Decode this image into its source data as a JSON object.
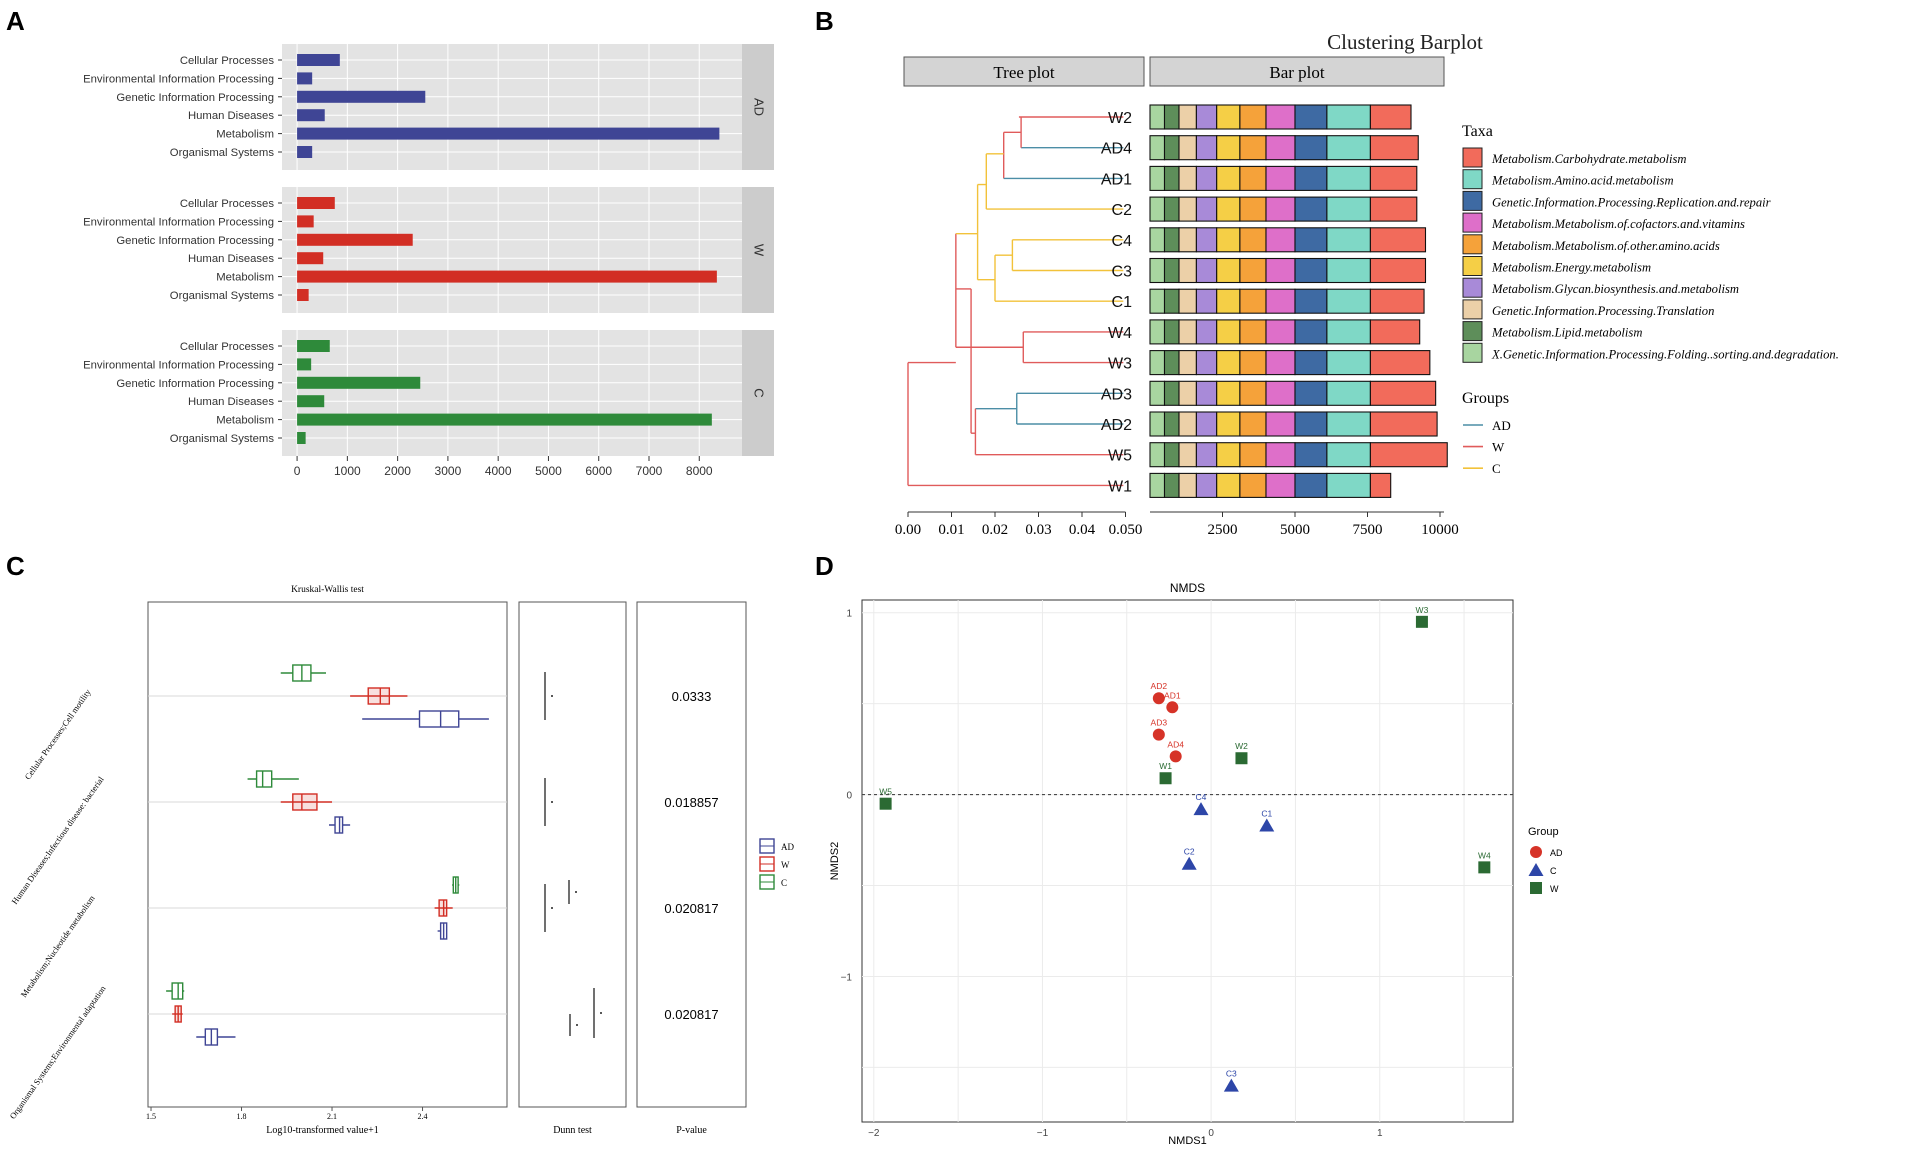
{
  "colors": {
    "AD": "#3f4595",
    "W": "#d22e24",
    "C": "#2e8a3a",
    "panel_bg": "#e3e3e3",
    "strip_bg": "#cccccc",
    "grid": "#ffffff",
    "tree_AD": "#4c8ea6",
    "tree_W": "#e05b5b",
    "tree_C": "#f2c23a",
    "nmds_AD": "#d63328",
    "nmds_C": "#2d46a8",
    "nmds_W": "#2b6a33"
  },
  "chart_data": [
    {
      "panel": "A",
      "type": "bar",
      "orientation": "horizontal",
      "categories": [
        "Cellular Processes",
        "Environmental Information Processing",
        "Genetic Information Processing",
        "Human Diseases",
        "Metabolism",
        "Organismal Systems"
      ],
      "series": [
        {
          "name": "AD",
          "values": [
            850,
            300,
            2550,
            550,
            8400,
            300
          ]
        },
        {
          "name": "W",
          "values": [
            750,
            330,
            2300,
            520,
            8350,
            230
          ]
        },
        {
          "name": "C",
          "values": [
            650,
            280,
            2450,
            540,
            8250,
            170
          ]
        }
      ],
      "xticks": [
        0,
        1000,
        2000,
        3000,
        4000,
        5000,
        6000,
        7000,
        8000
      ],
      "xlim": [
        -300,
        8850
      ]
    },
    {
      "panel": "B",
      "type": "bar",
      "stacked": true,
      "title": "Clustering Barplot",
      "tree_title": "Tree plot",
      "bar_title": "Bar plot",
      "samples": [
        "W2",
        "AD4",
        "AD1",
        "C2",
        "C4",
        "C3",
        "C1",
        "W4",
        "W3",
        "AD3",
        "AD2",
        "W5",
        "W1"
      ],
      "sample_groups": [
        "W",
        "AD",
        "AD",
        "C",
        "C",
        "C",
        "C",
        "W",
        "W",
        "AD",
        "AD",
        "W",
        "W"
      ],
      "taxa": [
        {
          "name": "Metabolism.Carbohydrate.metabolism",
          "color": "#f26b5b"
        },
        {
          "name": "Metabolism.Amino.acid.metabolism",
          "color": "#7fd8c6"
        },
        {
          "name": "Genetic.Information.Processing.Replication.and.repair",
          "color": "#3e6aa3"
        },
        {
          "name": "Metabolism.Metabolism.of.cofactors.and.vitamins",
          "color": "#de6fc9"
        },
        {
          "name": "Metabolism.Metabolism.of.other.amino.acids",
          "color": "#f5a23a"
        },
        {
          "name": "Metabolism.Energy.metabolism",
          "color": "#f5cf46"
        },
        {
          "name": "Metabolism.Glycan.biosynthesis.and.metabolism",
          "color": "#a88ad8"
        },
        {
          "name": "Genetic.Information.Processing.Translation",
          "color": "#ecd0a8"
        },
        {
          "name": "Metabolism.Lipid.metabolism",
          "color": "#5e8e5a"
        },
        {
          "name": "X.Genetic.Information.Processing.Folding..sorting.and.degradation.",
          "color": "#a8d5a0"
        }
      ],
      "segments_bottom_to_top": [
        500,
        500,
        600,
        700,
        800,
        900,
        1000,
        1100,
        1500,
        1500
      ],
      "totals": [
        9000,
        9250,
        9200,
        9200,
        9500,
        9500,
        9450,
        9300,
        9650,
        9850,
        9900,
        10250,
        8300
      ],
      "tree_xticks": [
        "0.00",
        "0.01",
        "0.02",
        "0.03",
        "0.04",
        "0.050"
      ],
      "bar_xticks": [
        "2500",
        "5000",
        "7500",
        "10000"
      ],
      "legend_taxa_title": "Taxa",
      "legend_groups_title": "Groups",
      "groups": [
        "AD",
        "W",
        "C"
      ]
    },
    {
      "panel": "C",
      "type": "box",
      "title": "Kruskal-Wallis test",
      "xlabel": "Log10-transformed value+1",
      "xticks": [
        "1.5",
        "1.8",
        "2.1",
        "2.4"
      ],
      "xlim": [
        1.49,
        2.68
      ],
      "features": [
        {
          "name": "Cellular Processes;Cell motility",
          "p": "0.0333",
          "C": [
            1.93,
            1.97,
            2.0,
            2.03,
            2.08
          ],
          "W": [
            2.16,
            2.22,
            2.26,
            2.29,
            2.35
          ],
          "AD": [
            2.2,
            2.39,
            2.46,
            2.52,
            2.62
          ]
        },
        {
          "name": "Human Diseases;Infectious disease: bacterial",
          "p": "0.018857",
          "C": [
            1.82,
            1.85,
            1.87,
            1.9,
            1.99
          ],
          "W": [
            1.93,
            1.97,
            2.0,
            2.05,
            2.1
          ],
          "AD": [
            2.09,
            2.11,
            2.125,
            2.135,
            2.16
          ]
        },
        {
          "name": "Metabolism;Nucleotide metabolism",
          "p": "0.020817",
          "C": [
            2.498,
            2.502,
            2.51,
            2.518,
            2.522
          ],
          "W": [
            2.44,
            2.455,
            2.47,
            2.48,
            2.5
          ],
          "AD": [
            2.45,
            2.46,
            2.47,
            2.48,
            2.48
          ]
        },
        {
          "name": "Organismal Systems;Environmental adaptation",
          "p": "0.020817",
          "C": [
            1.55,
            1.57,
            1.59,
            1.605,
            1.61
          ],
          "W": [
            1.57,
            1.58,
            1.59,
            1.6,
            1.605
          ],
          "AD": [
            1.65,
            1.68,
            1.7,
            1.72,
            1.78
          ]
        }
      ],
      "dunn_title": "Dunn test",
      "pvalue_title": "P-value",
      "legend": [
        "AD",
        "W",
        "C"
      ]
    },
    {
      "panel": "D",
      "type": "scatter",
      "title": "NMDS",
      "xlabel": "NMDS1",
      "ylabel": "NMDS2",
      "xticks": [
        "-2",
        "-1",
        "0",
        "1"
      ],
      "yticks": [
        "1",
        "0",
        "-1"
      ],
      "legend_title": "Group",
      "legend": [
        "AD",
        "C",
        "W"
      ],
      "points": [
        {
          "label": "AD2",
          "group": "AD",
          "x": -0.31,
          "y": 0.53
        },
        {
          "label": "AD1",
          "group": "AD",
          "x": -0.23,
          "y": 0.48
        },
        {
          "label": "AD3",
          "group": "AD",
          "x": -0.31,
          "y": 0.33
        },
        {
          "label": "AD4",
          "group": "AD",
          "x": -0.21,
          "y": 0.21
        },
        {
          "label": "W3",
          "group": "W",
          "x": 1.25,
          "y": 0.95
        },
        {
          "label": "W2",
          "group": "W",
          "x": 0.18,
          "y": 0.2
        },
        {
          "label": "W1",
          "group": "W",
          "x": -0.27,
          "y": 0.09
        },
        {
          "label": "W5",
          "group": "W",
          "x": -1.93,
          "y": -0.05
        },
        {
          "label": "W4",
          "group": "W",
          "x": 1.62,
          "y": -0.4
        },
        {
          "label": "C4",
          "group": "C",
          "x": -0.06,
          "y": -0.08
        },
        {
          "label": "C1",
          "group": "C",
          "x": 0.33,
          "y": -0.17
        },
        {
          "label": "C2",
          "group": "C",
          "x": -0.13,
          "y": -0.38
        },
        {
          "label": "C3",
          "group": "C",
          "x": 0.12,
          "y": -1.6
        }
      ],
      "xlim": [
        -2.07,
        1.79
      ],
      "ylim": [
        -1.8,
        1.07
      ]
    }
  ],
  "panel_labels": [
    "A",
    "B",
    "C",
    "D"
  ]
}
